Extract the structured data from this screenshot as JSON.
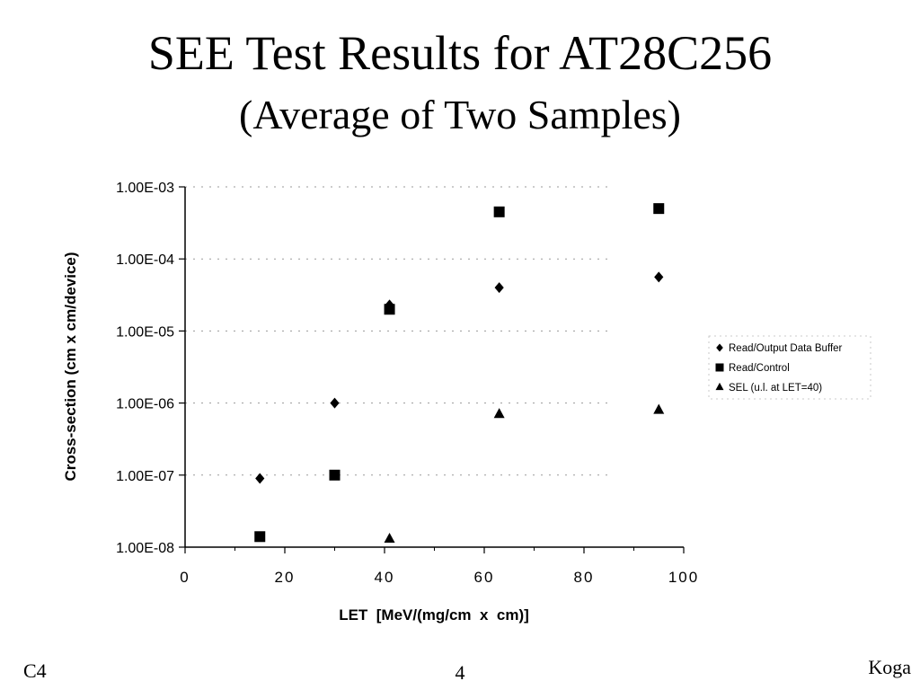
{
  "slide": {
    "title": "SEE Test Results for AT28C256",
    "subtitle": "(Average of Two Samples)",
    "footer_left": "C4",
    "footer_center": "4",
    "footer_right": "Koga"
  },
  "chart_data": {
    "type": "scatter",
    "title": "",
    "xlabel": "LET  [MeV/(mg/cm  x  cm)]",
    "ylabel": "Cross-section (cm x cm/device)",
    "xlim": [
      0,
      100
    ],
    "ylim": [
      1e-08,
      0.001
    ],
    "yscale": "log",
    "xticks": [
      0,
      20,
      40,
      60,
      80,
      100
    ],
    "xtick_labels": [
      "0",
      "20",
      "40",
      "60",
      "80",
      "100"
    ],
    "yticks": [
      1e-08,
      1e-07,
      1e-06,
      1e-05,
      0.0001,
      0.001
    ],
    "ytick_labels": [
      "1.00E-08",
      "1.00E-07",
      "1.00E-06",
      "1.00E-05",
      "1.00E-04",
      "1.00E-03"
    ],
    "legend_position": "right",
    "series": [
      {
        "name": "Read/Output Data Buffer",
        "marker": "diamond",
        "points": [
          [
            15,
            9e-08
          ],
          [
            30,
            1e-06
          ],
          [
            41,
            2.3e-05
          ],
          [
            63,
            4e-05
          ],
          [
            95,
            5.6e-05
          ]
        ]
      },
      {
        "name": "Read/Control",
        "marker": "square",
        "points": [
          [
            15,
            1.4e-08
          ],
          [
            30,
            1e-07
          ],
          [
            41,
            2e-05
          ],
          [
            63,
            0.00045
          ],
          [
            95,
            0.0005
          ]
        ]
      },
      {
        "name": "SEL (u.l. at LET=40)",
        "marker": "triangle",
        "points": [
          [
            41,
            1.3e-08
          ],
          [
            63,
            7e-07
          ],
          [
            95,
            8e-07
          ]
        ]
      }
    ]
  }
}
